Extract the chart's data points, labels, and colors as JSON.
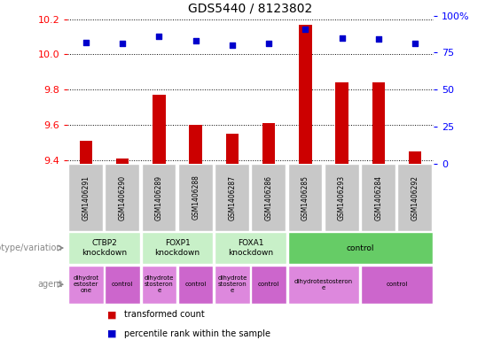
{
  "title": "GDS5440 / 8123802",
  "samples": [
    "GSM1406291",
    "GSM1406290",
    "GSM1406289",
    "GSM1406288",
    "GSM1406287",
    "GSM1406286",
    "GSM1406285",
    "GSM1406293",
    "GSM1406284",
    "GSM1406292"
  ],
  "transformed_counts": [
    9.51,
    9.41,
    9.77,
    9.6,
    9.55,
    9.61,
    10.17,
    9.84,
    9.84,
    9.45
  ],
  "percentile_ranks": [
    82,
    81,
    86,
    83,
    80,
    81,
    91,
    85,
    84,
    81
  ],
  "ylim_left": [
    9.38,
    10.22
  ],
  "ylim_right": [
    0,
    100
  ],
  "yticks_left": [
    9.4,
    9.6,
    9.8,
    10.0,
    10.2
  ],
  "yticks_right": [
    0,
    25,
    50,
    75,
    100
  ],
  "ytick_right_labels": [
    "0",
    "25",
    "50",
    "75",
    "100%"
  ],
  "bar_color": "#cc0000",
  "dot_color": "#0000cc",
  "genotype_groups": [
    {
      "label": "CTBP2\nknockdown",
      "start": 0,
      "end": 2,
      "color": "#c8f0c8"
    },
    {
      "label": "FOXP1\nknockdown",
      "start": 2,
      "end": 4,
      "color": "#c8f0c8"
    },
    {
      "label": "FOXA1\nknockdown",
      "start": 4,
      "end": 6,
      "color": "#c8f0c8"
    },
    {
      "label": "control",
      "start": 6,
      "end": 10,
      "color": "#66cc66"
    }
  ],
  "agent_groups": [
    {
      "label": "dihydrot\nestoster\none",
      "start": 0,
      "end": 1,
      "color": "#dd88dd"
    },
    {
      "label": "control",
      "start": 1,
      "end": 2,
      "color": "#cc66cc"
    },
    {
      "label": "dihydrote\nstosteron\ne",
      "start": 2,
      "end": 3,
      "color": "#dd88dd"
    },
    {
      "label": "control",
      "start": 3,
      "end": 4,
      "color": "#cc66cc"
    },
    {
      "label": "dihydrote\nstosteron\ne",
      "start": 4,
      "end": 5,
      "color": "#dd88dd"
    },
    {
      "label": "control",
      "start": 5,
      "end": 6,
      "color": "#cc66cc"
    },
    {
      "label": "dihydrotestosteron\ne",
      "start": 6,
      "end": 8,
      "color": "#dd88dd"
    },
    {
      "label": "control",
      "start": 8,
      "end": 10,
      "color": "#cc66cc"
    }
  ],
  "legend_items": [
    {
      "label": "transformed count",
      "color": "#cc0000"
    },
    {
      "label": "percentile rank within the sample",
      "color": "#0000cc"
    }
  ],
  "sample_box_color": "#c8c8c8",
  "bar_width": 0.35
}
